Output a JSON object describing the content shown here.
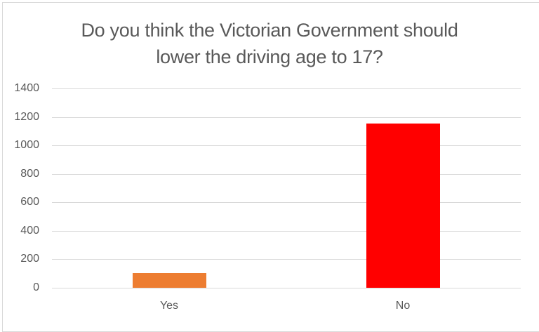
{
  "chart_data": {
    "type": "bar",
    "title": "Do you think the Victorian Government should lower the driving age to 17?",
    "title_lines": [
      "Do you think the Victorian Government should",
      "lower the driving age to 17?"
    ],
    "categories": [
      "Yes",
      "No"
    ],
    "values": [
      105,
      1155
    ],
    "colors": [
      "#ED7D31",
      "#FF0000"
    ],
    "xlabel": "",
    "ylabel": "",
    "ylim": [
      0,
      1400
    ],
    "yticks": [
      "0",
      "200",
      "400",
      "600",
      "800",
      "1000",
      "1200",
      "1400"
    ],
    "grid": true,
    "legend": null
  }
}
